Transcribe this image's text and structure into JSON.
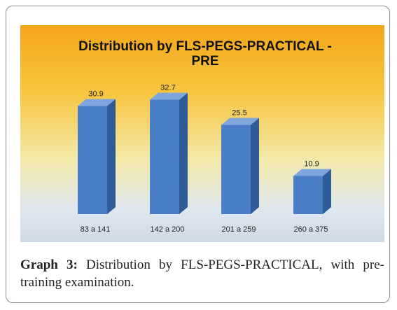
{
  "chart_data": {
    "type": "bar",
    "title": "Distribution by FLS-PEGS-PRACTICAL - PRE",
    "title_lines": [
      "Distribution by FLS-PEGS-PRACTICAL -",
      "PRE"
    ],
    "categories": [
      "83 a 141",
      "142 a 200",
      "201 a 259",
      "260 a 375"
    ],
    "values": [
      30.9,
      32.7,
      25.5,
      10.9
    ],
    "data_labels": [
      "30.9",
      "32.7",
      "25.5",
      "10.9"
    ],
    "ylim": [
      0,
      40
    ],
    "grid": false,
    "legend": "none",
    "colors": {
      "bar_front": "#4a7ec6",
      "bar_side": "#2f5c99",
      "bar_top": "#7ea6dd",
      "background_top": "#f3a61c",
      "background_bottom": "#cfd9e6"
    }
  },
  "caption": {
    "label": "Graph 3:",
    "text": "Distribution by FLS-PEGS-PRACTICAL, with pre-training examination."
  }
}
